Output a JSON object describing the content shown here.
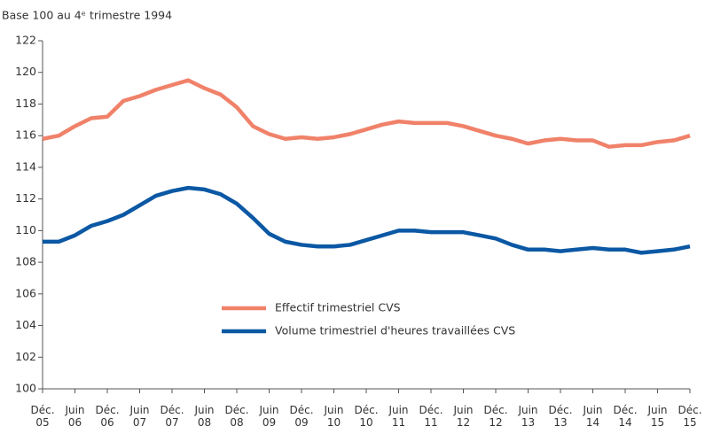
{
  "chart_data": {
    "type": "line",
    "title": "Base 100 au 4ᵉ trimestre 1994",
    "categories": [
      "Déc. 05",
      null,
      "Juin 06",
      null,
      "Déc. 06",
      null,
      "Juin 07",
      null,
      "Déc. 07",
      null,
      "Juin 08",
      null,
      "Déc. 08",
      null,
      "Juin 09",
      null,
      "Déc. 09",
      null,
      "Juin 10",
      null,
      "Déc. 10",
      null,
      "Juin 11",
      null,
      "Déc. 11",
      null,
      "Juin 12",
      null,
      "Déc. 12",
      null,
      "Juin 13",
      null,
      "Déc. 13",
      null,
      "Juin 14",
      null,
      "Déc. 14",
      null,
      "Juin 15",
      null,
      "Déc. 15"
    ],
    "series": [
      {
        "name": "Effectif trimestriel CVS",
        "color": "#f0826a",
        "values": [
          115.8,
          116.0,
          116.6,
          117.1,
          117.2,
          118.2,
          118.5,
          118.9,
          119.2,
          119.5,
          119.0,
          118.6,
          117.8,
          116.6,
          116.1,
          115.8,
          115.9,
          115.8,
          115.9,
          116.1,
          116.4,
          116.7,
          116.9,
          116.8,
          116.8,
          116.8,
          116.6,
          116.3,
          116.0,
          115.8,
          115.5,
          115.7,
          115.8,
          115.7,
          115.7,
          115.3,
          115.4,
          115.4,
          115.6,
          115.7,
          116.0
        ]
      },
      {
        "name": "Volume trimestriel d'heures travaillées CVS",
        "color": "#0b58a4",
        "values": [
          109.3,
          109.3,
          109.7,
          110.3,
          110.6,
          111.0,
          111.6,
          112.2,
          112.5,
          112.7,
          112.6,
          112.3,
          111.7,
          110.8,
          109.8,
          109.3,
          109.1,
          109.0,
          109.0,
          109.1,
          109.4,
          109.7,
          110.0,
          110.0,
          109.9,
          109.9,
          109.9,
          109.7,
          109.5,
          109.1,
          108.8,
          108.8,
          108.7,
          108.8,
          108.9,
          108.8,
          108.8,
          108.6,
          108.7,
          108.8,
          109.0
        ]
      }
    ],
    "ylim": [
      100,
      122
    ],
    "yticks": [
      100,
      102,
      104,
      106,
      108,
      110,
      112,
      114,
      116,
      118,
      120,
      122
    ],
    "grid": false
  }
}
